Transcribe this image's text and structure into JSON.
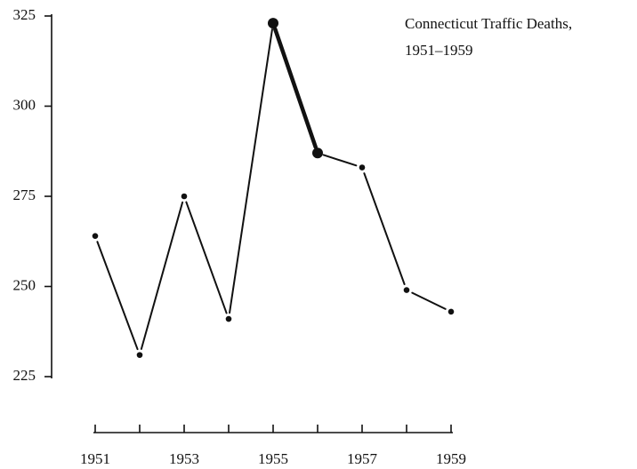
{
  "chart_data": {
    "type": "line",
    "title": [
      "Connecticut Traffic Deaths,",
      "1951–1959"
    ],
    "categories": [
      "1951",
      null,
      "1953",
      null,
      "1955",
      null,
      "1957",
      null,
      "1959"
    ],
    "series": [
      {
        "color": "#111111",
        "values": [
          264,
          231,
          275,
          241,
          323,
          287,
          283,
          249,
          243
        ]
      }
    ],
    "emphasis": [
      4,
      5
    ],
    "ylim": [
      225,
      325
    ],
    "yticks": [
      225,
      250,
      275,
      300,
      325
    ]
  }
}
